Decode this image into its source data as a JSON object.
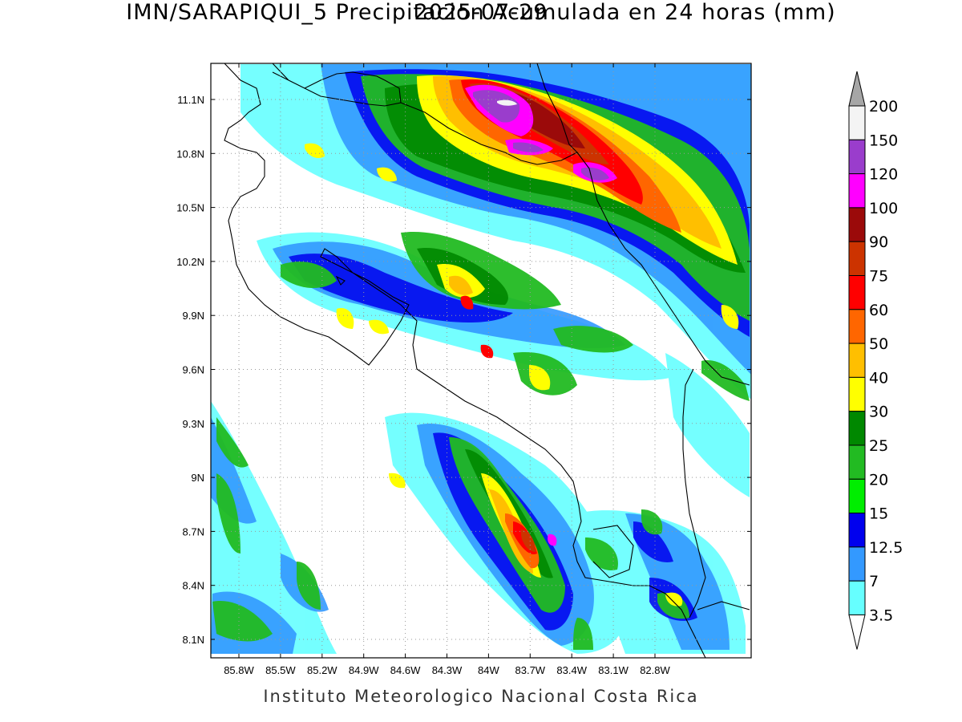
{
  "title": "IMN/SARAPIQUI_5 Precipitacion Acumulada en 24 horas (mm)",
  "date": "2025-07-29",
  "footer": "Instituto Meteorologico Nacional Costa Rica",
  "y_ticks": [
    "11.1N",
    "10.8N",
    "10.5N",
    "10.2N",
    "9.9N",
    "9.6N",
    "9.3N",
    "9N",
    "8.7N",
    "8.4N",
    "8.1N"
  ],
  "x_ticks": [
    "85.8W",
    "85.5W",
    "85.2W",
    "84.9W",
    "84.6W",
    "84.3W",
    "84W",
    "83.7W",
    "83.4W",
    "83.1W",
    "82.8W"
  ],
  "legend": {
    "levels": [
      "200",
      "150",
      "120",
      "100",
      "90",
      "75",
      "60",
      "50",
      "40",
      "30",
      "25",
      "20",
      "15",
      "12.5",
      "7",
      "3.5"
    ],
    "colors": [
      "#f4f4f4",
      "#9a3dcc",
      "#ff00ff",
      "#9b0a0a",
      "#cc3300",
      "#ff0000",
      "#ff6600",
      "#ffbf00",
      "#ffff00",
      "#008800",
      "#22bb22",
      "#00ee00",
      "#0000ee",
      "#3399ff",
      "#66ffff"
    ],
    "over_color": "#a6a6a6",
    "under_color": "#ffffff"
  }
}
